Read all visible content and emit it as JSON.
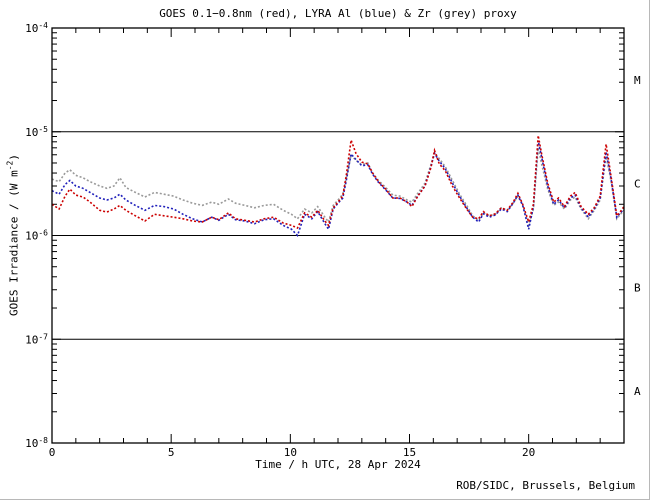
{
  "footer": {
    "credit": "ROB/SIDC, Brussels, Belgium"
  },
  "chart_data": {
    "type": "line",
    "title": "GOES 0.1−0.8nm (red), LYRA Al (blue) & Zr (grey) proxy",
    "xlabel": "Time / h UTC, 28 Apr 2024",
    "ylabel": {
      "text": "GOES Irradiance / (W m",
      "sup": "-2",
      "close": ")"
    },
    "x_range": [
      0,
      24
    ],
    "x_major_ticks": [
      0,
      5,
      10,
      15,
      20
    ],
    "x_minor_step": 1,
    "y_scale": "log",
    "y_range": [
      1e-08,
      0.0001
    ],
    "y_ticks": [
      {
        "value": 0.0001,
        "base": "10",
        "exp": "-4"
      },
      {
        "value": 1e-05,
        "base": "10",
        "exp": "-5"
      },
      {
        "value": 1e-06,
        "base": "10",
        "exp": "-6"
      },
      {
        "value": 1e-07,
        "base": "10",
        "exp": "-7"
      },
      {
        "value": 1e-08,
        "base": "10",
        "exp": "-8"
      }
    ],
    "hline_values": [
      1e-05,
      1e-06,
      1e-07
    ],
    "flare_classes": [
      "M",
      "C",
      "B",
      "A"
    ],
    "grid": false,
    "legend": "colors named in title",
    "x": [
      0,
      0.3,
      0.55,
      0.75,
      1.0,
      1.3,
      1.6,
      2.0,
      2.3,
      2.6,
      2.85,
      3.1,
      3.5,
      3.9,
      4.3,
      4.7,
      5.1,
      5.5,
      5.9,
      6.3,
      6.7,
      7.0,
      7.4,
      7.7,
      8.1,
      8.5,
      8.9,
      9.3,
      9.7,
      10.05,
      10.3,
      10.6,
      10.9,
      11.15,
      11.45,
      11.6,
      11.8,
      12.0,
      12.2,
      12.35,
      12.55,
      12.75,
      13.0,
      13.25,
      13.45,
      13.7,
      14.0,
      14.3,
      14.6,
      14.9,
      15.1,
      15.35,
      15.65,
      15.9,
      16.05,
      16.25,
      16.5,
      16.8,
      17.1,
      17.4,
      17.65,
      17.9,
      18.1,
      18.35,
      18.6,
      18.85,
      19.1,
      19.35,
      19.55,
      19.75,
      20.0,
      20.2,
      20.4,
      20.55,
      20.8,
      21.05,
      21.25,
      21.5,
      21.75,
      21.95,
      22.2,
      22.5,
      22.75,
      23.0,
      23.25,
      23.45,
      23.7,
      23.85,
      24
    ],
    "series": [
      {
        "name": "GOES 0.1−0.8nm",
        "key": "goes-xray-red",
        "color": "#cc0000",
        "values": [
          2e-06,
          1.8e-06,
          2.4e-06,
          2.8e-06,
          2.45e-06,
          2.35e-06,
          2.1e-06,
          1.75e-06,
          1.68e-06,
          1.8e-06,
          1.95e-06,
          1.75e-06,
          1.55e-06,
          1.38e-06,
          1.6e-06,
          1.55e-06,
          1.5e-06,
          1.45e-06,
          1.38e-06,
          1.35e-06,
          1.5e-06,
          1.42e-06,
          1.65e-06,
          1.45e-06,
          1.4e-06,
          1.35e-06,
          1.45e-06,
          1.5e-06,
          1.32e-06,
          1.25e-06,
          1.18e-06,
          1.65e-06,
          1.5e-06,
          1.75e-06,
          1.38e-06,
          1.25e-06,
          1.85e-06,
          2.1e-06,
          2.4e-06,
          3.8e-06,
          8.3e-06,
          6.2e-06,
          5.1e-06,
          4.9e-06,
          4e-06,
          3.3e-06,
          2.8e-06,
          2.3e-06,
          2.3e-06,
          2.1e-06,
          1.9e-06,
          2.4e-06,
          3e-06,
          4.5e-06,
          6.6e-06,
          4.9e-06,
          4.2e-06,
          3e-06,
          2.3e-06,
          1.8e-06,
          1.5e-06,
          1.45e-06,
          1.7e-06,
          1.55e-06,
          1.62e-06,
          1.85e-06,
          1.75e-06,
          2.1e-06,
          2.55e-06,
          2e-06,
          1.35e-06,
          2e-06,
          9.2e-06,
          6e-06,
          3.2e-06,
          2.1e-06,
          2.3e-06,
          1.9e-06,
          2.4e-06,
          2.6e-06,
          1.9e-06,
          1.6e-06,
          1.85e-06,
          2.4e-06,
          7.6e-06,
          3.8e-06,
          1.55e-06,
          1.7e-06,
          1.9e-06
        ]
      },
      {
        "name": "LYRA Al proxy",
        "key": "lyra-al-blue",
        "color": "#2020bb",
        "values": [
          2.7e-06,
          2.5e-06,
          3.1e-06,
          3.4e-06,
          3e-06,
          2.85e-06,
          2.6e-06,
          2.3e-06,
          2.2e-06,
          2.3e-06,
          2.5e-06,
          2.2e-06,
          1.95e-06,
          1.75e-06,
          1.95e-06,
          1.9e-06,
          1.8e-06,
          1.6e-06,
          1.45e-06,
          1.35e-06,
          1.5e-06,
          1.4e-06,
          1.6e-06,
          1.42e-06,
          1.38e-06,
          1.3e-06,
          1.42e-06,
          1.45e-06,
          1.25e-06,
          1.15e-06,
          1e-06,
          1.6e-06,
          1.45e-06,
          1.7e-06,
          1.3e-06,
          1.15e-06,
          1.8e-06,
          2.05e-06,
          2.3e-06,
          3.4e-06,
          6.1e-06,
          5.4e-06,
          4.7e-06,
          4.8e-06,
          3.9e-06,
          3.25e-06,
          2.75e-06,
          2.3e-06,
          2.28e-06,
          2.1e-06,
          1.95e-06,
          2.4e-06,
          3e-06,
          4.6e-06,
          6.2e-06,
          5.2e-06,
          4.4e-06,
          3.2e-06,
          2.4e-06,
          1.85e-06,
          1.5e-06,
          1.35e-06,
          1.62e-06,
          1.5e-06,
          1.58e-06,
          1.8e-06,
          1.7e-06,
          2.05e-06,
          2.45e-06,
          1.95e-06,
          1.15e-06,
          1.9e-06,
          8.2e-06,
          5.6e-06,
          3e-06,
          2e-06,
          2.2e-06,
          1.85e-06,
          2.3e-06,
          2.45e-06,
          1.85e-06,
          1.5e-06,
          1.8e-06,
          2.3e-06,
          6.4e-06,
          3.6e-06,
          1.5e-06,
          1.65e-06,
          1.8e-06
        ]
      },
      {
        "name": "LYRA Zr proxy",
        "key": "lyra-zr-grey",
        "color": "#9a9a9a",
        "values": [
          3.5e-06,
          3.3e-06,
          4e-06,
          4.3e-06,
          3.8e-06,
          3.6e-06,
          3.3e-06,
          3e-06,
          2.85e-06,
          3e-06,
          3.6e-06,
          2.9e-06,
          2.6e-06,
          2.35e-06,
          2.6e-06,
          2.5e-06,
          2.4e-06,
          2.2e-06,
          2.05e-06,
          1.95e-06,
          2.1e-06,
          2e-06,
          2.25e-06,
          2.05e-06,
          1.95e-06,
          1.85e-06,
          1.95e-06,
          2e-06,
          1.75e-06,
          1.6e-06,
          1.45e-06,
          1.8e-06,
          1.65e-06,
          1.9e-06,
          1.5e-06,
          1.35e-06,
          1.95e-06,
          2.2e-06,
          2.5e-06,
          3.6e-06,
          6e-06,
          5.3e-06,
          4.8e-06,
          5e-06,
          4e-06,
          3.4e-06,
          2.9e-06,
          2.45e-06,
          2.4e-06,
          2.2e-06,
          2.1e-06,
          2.55e-06,
          3.2e-06,
          4.8e-06,
          6.3e-06,
          5.5e-06,
          4.6e-06,
          3.4e-06,
          2.5e-06,
          1.95e-06,
          1.55e-06,
          1.4e-06,
          1.65e-06,
          1.55e-06,
          1.6e-06,
          1.85e-06,
          1.75e-06,
          2.05e-06,
          2.4e-06,
          1.95e-06,
          1.25e-06,
          1.8e-06,
          7e-06,
          4.8e-06,
          2.8e-06,
          1.95e-06,
          2.1e-06,
          1.8e-06,
          2.2e-06,
          2.35e-06,
          1.8e-06,
          1.45e-06,
          1.75e-06,
          2.2e-06,
          5.8e-06,
          3.4e-06,
          1.45e-06,
          1.6e-06,
          1.75e-06
        ]
      }
    ]
  }
}
